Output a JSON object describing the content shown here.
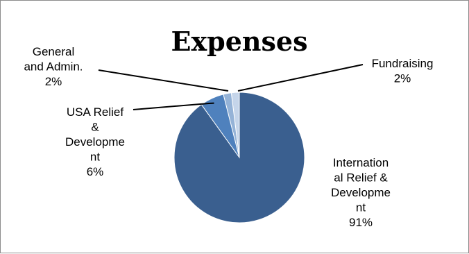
{
  "chart_data": {
    "type": "pie",
    "title": "Expenses",
    "slices": [
      {
        "label": "International Relief & Development",
        "label_lines": [
          "Internation",
          "al Relief &",
          "Developme",
          "nt",
          "91%"
        ],
        "value": 91,
        "color": "#3a5f8f"
      },
      {
        "label": "USA Relief & Development",
        "label_lines": [
          "USA Relief",
          "&",
          "Developme",
          "nt",
          "6%"
        ],
        "value": 6,
        "color": "#4f81bd"
      },
      {
        "label": "General and Admin.",
        "label_lines": [
          "General",
          "and Admin.",
          "2%"
        ],
        "value": 2,
        "color": "#95b3d7"
      },
      {
        "label": "Fundraising",
        "label_lines": [
          "Fundraising",
          "2%"
        ],
        "value": 2,
        "color": "#c5d5ea"
      }
    ],
    "legend": "none"
  }
}
